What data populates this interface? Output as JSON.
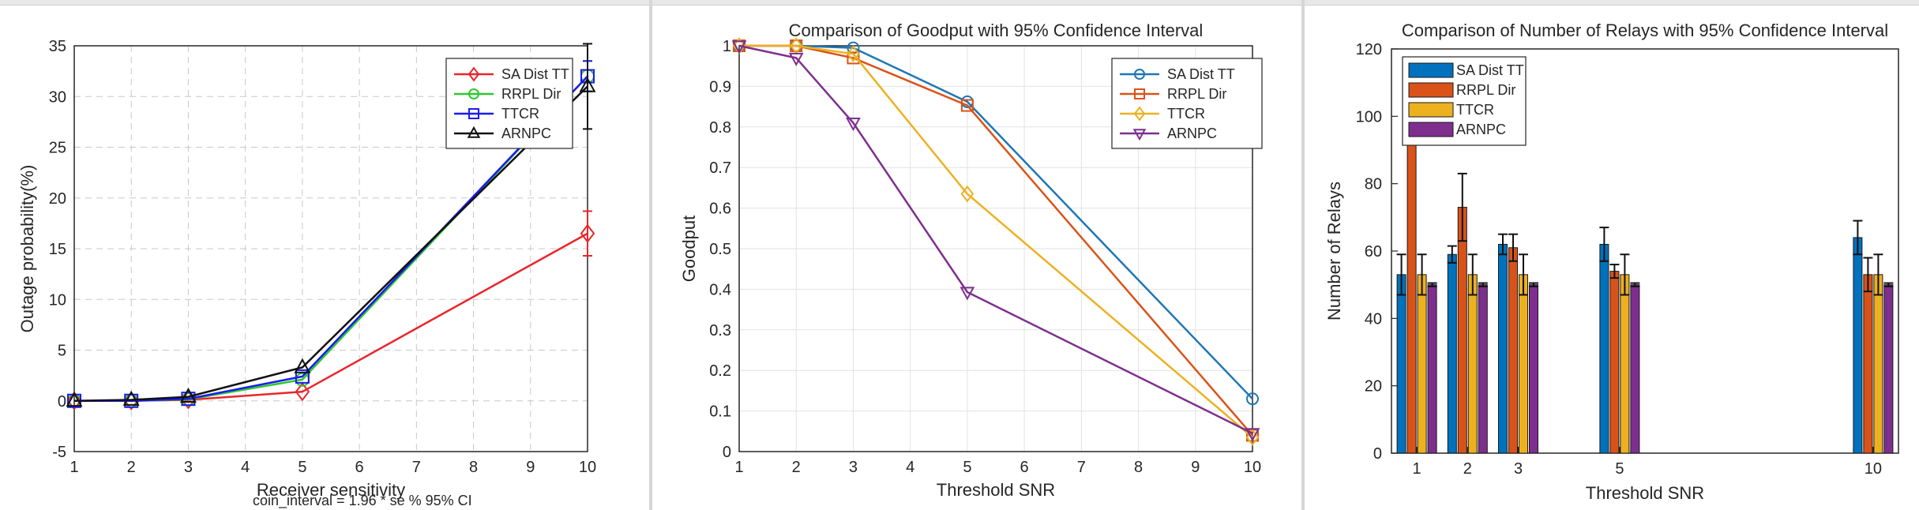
{
  "chart_data": [
    {
      "type": "line",
      "title": "",
      "xlabel": "Receiver sensitivity",
      "ylabel": "Outage probability(%)",
      "xlim": [
        1,
        10
      ],
      "ylim": [
        -5,
        35
      ],
      "xticks": [
        "1",
        "2",
        "3",
        "4",
        "5",
        "6",
        "7",
        "8",
        "9",
        "10"
      ],
      "yticks": [
        "-5",
        "0",
        "5",
        "10",
        "15",
        "20",
        "25",
        "30",
        "35"
      ],
      "grid": true,
      "legend_position": "top-right",
      "x": [
        1,
        2,
        3,
        5,
        10
      ],
      "series": [
        {
          "name": "SA Dist TT",
          "color": "#e8262b",
          "marker": "diamond",
          "values": [
            0,
            0,
            0.1,
            0.9,
            16.5
          ],
          "err": [
            0,
            0,
            0,
            0,
            2.2
          ]
        },
        {
          "name": "RRPL Dir",
          "color": "#2ec82e",
          "marker": "circle",
          "values": [
            0,
            0,
            0.15,
            2.1,
            32
          ],
          "err": [
            0,
            0,
            0,
            0,
            1.5
          ]
        },
        {
          "name": "TTCR",
          "color": "#1b1bf0",
          "marker": "square",
          "values": [
            0,
            0,
            0.2,
            2.4,
            32
          ],
          "err": [
            0,
            0,
            0,
            0,
            1.5
          ]
        },
        {
          "name": "ARNPC",
          "color": "#111111",
          "marker": "triangle-up",
          "values": [
            0,
            0.1,
            0.4,
            3.3,
            31
          ],
          "err": [
            0,
            0,
            0,
            0,
            4.2
          ]
        }
      ],
      "footer_text": "coin_interval = 1.96 * se   % 95% CI"
    },
    {
      "type": "line",
      "title": "Comparison of Goodput with 95% Confidence Interval",
      "xlabel": "Threshold SNR",
      "ylabel": "Goodput",
      "xlim": [
        1,
        10
      ],
      "ylim": [
        0,
        1
      ],
      "xticks": [
        "1",
        "2",
        "3",
        "4",
        "5",
        "6",
        "7",
        "8",
        "9",
        "10"
      ],
      "yticks": [
        "0",
        "0.1",
        "0.2",
        "0.3",
        "0.4",
        "0.5",
        "0.6",
        "0.7",
        "0.8",
        "0.9",
        "1"
      ],
      "grid": true,
      "legend_position": "top-right",
      "x": [
        1,
        2,
        3,
        5,
        10
      ],
      "series": [
        {
          "name": "SA Dist TT",
          "color": "#1f77b4",
          "marker": "circle",
          "values": [
            1,
            1,
            0.995,
            0.862,
            0.13
          ]
        },
        {
          "name": "RRPL Dir",
          "color": "#d95319",
          "marker": "square",
          "values": [
            1,
            1,
            0.97,
            0.853,
            0.04
          ]
        },
        {
          "name": "TTCR",
          "color": "#edb120",
          "marker": "diamond",
          "values": [
            1,
            1,
            0.98,
            0.635,
            0.035
          ]
        },
        {
          "name": "ARNPC",
          "color": "#7e2f8e",
          "marker": "triangle-down",
          "values": [
            1,
            0.97,
            0.81,
            0.393,
            0.045
          ]
        }
      ]
    },
    {
      "type": "bar",
      "title": "Comparison of Number of Relays with 95% Confidence Interval",
      "xlabel": "Threshold SNR",
      "ylabel": "Number of Relays",
      "xlim": [
        0.5,
        10.5
      ],
      "ylim": [
        0,
        120
      ],
      "x": [
        1,
        2,
        3,
        5,
        10
      ],
      "xticks": [
        "1",
        "2",
        "3",
        "5",
        "10"
      ],
      "yticks": [
        "0",
        "20",
        "40",
        "60",
        "80",
        "100",
        "120"
      ],
      "grid": false,
      "legend_position": "top-left",
      "series": [
        {
          "name": "SA Dist TT",
          "color": "#0072bd",
          "values": [
            53,
            59,
            62,
            62,
            64
          ],
          "err": [
            6,
            2.5,
            3,
            5,
            5
          ]
        },
        {
          "name": "RRPL Dir",
          "color": "#d95319",
          "values": [
            105,
            73,
            61,
            54,
            53
          ],
          "err": [
            12,
            10,
            4,
            2,
            5
          ]
        },
        {
          "name": "TTCR",
          "color": "#edb120",
          "values": [
            53,
            53,
            53,
            53,
            53
          ],
          "err": [
            6,
            6,
            6,
            6,
            6
          ]
        },
        {
          "name": "ARNPC",
          "color": "#7e2f8e",
          "values": [
            50,
            50,
            50,
            50,
            50
          ],
          "err": [
            0.5,
            0.5,
            0.5,
            0.5,
            0.5
          ]
        }
      ]
    }
  ]
}
